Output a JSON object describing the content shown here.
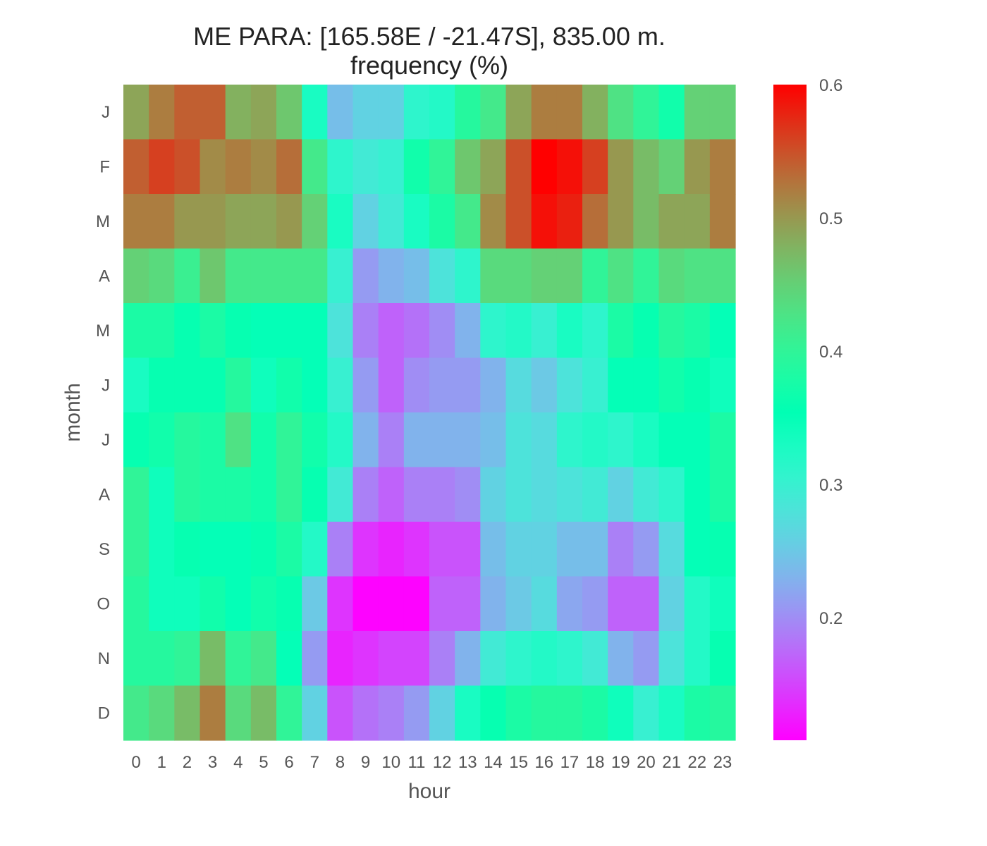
{
  "chart_data": {
    "type": "heatmap",
    "title": "ME PARA: [165.58E / -21.47S], 835.00 m.",
    "subtitle": "frequency (%)",
    "xlabel": "hour",
    "ylabel": "month",
    "x_categories": [
      "0",
      "1",
      "2",
      "3",
      "4",
      "5",
      "6",
      "7",
      "8",
      "9",
      "10",
      "11",
      "12",
      "13",
      "14",
      "15",
      "16",
      "17",
      "18",
      "19",
      "20",
      "21",
      "22",
      "23"
    ],
    "y_categories": [
      "J",
      "F",
      "M",
      "A",
      "M",
      "J",
      "J",
      "A",
      "S",
      "O",
      "N",
      "D"
    ],
    "values": [
      [
        0.49,
        0.52,
        0.54,
        0.54,
        0.48,
        0.49,
        0.46,
        0.33,
        0.24,
        0.26,
        0.26,
        0.31,
        0.32,
        0.39,
        0.42,
        0.49,
        0.52,
        0.52,
        0.48,
        0.43,
        0.4,
        0.37,
        0.45,
        0.45
      ],
      [
        0.54,
        0.56,
        0.55,
        0.51,
        0.52,
        0.51,
        0.53,
        0.42,
        0.31,
        0.29,
        0.3,
        0.37,
        0.4,
        0.46,
        0.49,
        0.55,
        0.6,
        0.59,
        0.56,
        0.5,
        0.47,
        0.45,
        0.5,
        0.52
      ],
      [
        0.52,
        0.52,
        0.5,
        0.5,
        0.49,
        0.49,
        0.5,
        0.45,
        0.33,
        0.26,
        0.29,
        0.33,
        0.38,
        0.42,
        0.51,
        0.55,
        0.59,
        0.58,
        0.53,
        0.5,
        0.47,
        0.49,
        0.49,
        0.52
      ],
      [
        0.45,
        0.44,
        0.41,
        0.46,
        0.42,
        0.42,
        0.42,
        0.42,
        0.3,
        0.21,
        0.23,
        0.24,
        0.28,
        0.31,
        0.44,
        0.44,
        0.45,
        0.45,
        0.4,
        0.43,
        0.4,
        0.44,
        0.43,
        0.43
      ],
      [
        0.38,
        0.38,
        0.36,
        0.38,
        0.36,
        0.35,
        0.35,
        0.35,
        0.28,
        0.19,
        0.17,
        0.18,
        0.2,
        0.23,
        0.31,
        0.32,
        0.3,
        0.33,
        0.31,
        0.38,
        0.36,
        0.39,
        0.38,
        0.35
      ],
      [
        0.33,
        0.36,
        0.36,
        0.36,
        0.39,
        0.34,
        0.37,
        0.35,
        0.3,
        0.21,
        0.17,
        0.2,
        0.21,
        0.21,
        0.23,
        0.27,
        0.25,
        0.28,
        0.3,
        0.35,
        0.35,
        0.37,
        0.36,
        0.34
      ],
      [
        0.36,
        0.37,
        0.39,
        0.38,
        0.43,
        0.37,
        0.4,
        0.37,
        0.32,
        0.23,
        0.19,
        0.23,
        0.23,
        0.23,
        0.24,
        0.28,
        0.27,
        0.31,
        0.32,
        0.31,
        0.33,
        0.35,
        0.35,
        0.38
      ],
      [
        0.4,
        0.34,
        0.39,
        0.38,
        0.38,
        0.37,
        0.4,
        0.36,
        0.29,
        0.19,
        0.17,
        0.19,
        0.19,
        0.2,
        0.26,
        0.28,
        0.27,
        0.28,
        0.29,
        0.26,
        0.29,
        0.31,
        0.35,
        0.38
      ],
      [
        0.4,
        0.34,
        0.36,
        0.35,
        0.35,
        0.36,
        0.38,
        0.32,
        0.19,
        0.14,
        0.13,
        0.14,
        0.16,
        0.16,
        0.24,
        0.26,
        0.26,
        0.24,
        0.24,
        0.19,
        0.21,
        0.27,
        0.35,
        0.36
      ],
      [
        0.39,
        0.34,
        0.34,
        0.37,
        0.35,
        0.37,
        0.36,
        0.25,
        0.14,
        0.11,
        0.11,
        0.11,
        0.17,
        0.17,
        0.23,
        0.25,
        0.27,
        0.22,
        0.21,
        0.17,
        0.17,
        0.26,
        0.32,
        0.34
      ],
      [
        0.39,
        0.39,
        0.4,
        0.47,
        0.4,
        0.42,
        0.35,
        0.21,
        0.13,
        0.14,
        0.15,
        0.15,
        0.19,
        0.23,
        0.29,
        0.31,
        0.32,
        0.31,
        0.29,
        0.23,
        0.21,
        0.28,
        0.32,
        0.36
      ],
      [
        0.42,
        0.44,
        0.47,
        0.52,
        0.44,
        0.47,
        0.4,
        0.26,
        0.16,
        0.18,
        0.19,
        0.21,
        0.26,
        0.33,
        0.36,
        0.38,
        0.39,
        0.39,
        0.38,
        0.34,
        0.3,
        0.33,
        0.38,
        0.39
      ]
    ],
    "colorbar": {
      "colormap": "rainbow",
      "vmin": 0.108,
      "vmax": 0.6,
      "ticks": [
        "0.2",
        "0.3",
        "0.4",
        "0.5",
        "0.6"
      ]
    },
    "grid": false
  }
}
